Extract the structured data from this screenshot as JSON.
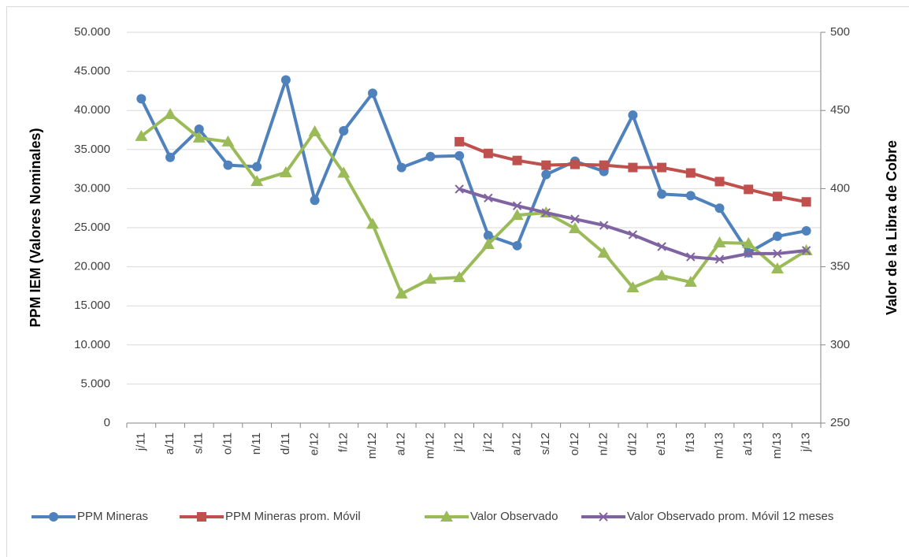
{
  "chart_data": {
    "type": "line",
    "categories": [
      "j/11",
      "a/11",
      "s/11",
      "o/11",
      "n/11",
      "d/11",
      "e/12",
      "f/12",
      "m/12",
      "a/12",
      "m/12",
      "j/12",
      "j/12",
      "a/12",
      "s/12",
      "o/12",
      "n/12",
      "d/12",
      "e/13",
      "f/13",
      "m/13",
      "a/13",
      "m/13",
      "j/13"
    ],
    "ylabel": "PPM IEM (Valores Nominales)",
    "y2label": "Valor de la Libra de Cobre",
    "ylim": [
      0,
      50000
    ],
    "yticks": [
      0,
      {
        "value": 5000,
        "label": "5.000"
      },
      {
        "value": 10000,
        "label": "10.000"
      },
      {
        "value": 15000,
        "label": "15.000"
      },
      {
        "value": 20000,
        "label": "20.000"
      },
      {
        "value": 25000,
        "label": "25.000"
      },
      {
        "value": 30000,
        "label": "30.000"
      },
      {
        "value": 35000,
        "label": "35.000"
      },
      {
        "value": 40000,
        "label": "40.000"
      },
      {
        "value": 45000,
        "label": "45.000"
      },
      {
        "value": 50000,
        "label": "50.000"
      }
    ],
    "y2lim": [
      250,
      500
    ],
    "y2ticks": [
      250,
      300,
      350,
      400,
      450,
      500
    ],
    "grid": true,
    "legend": "bottom",
    "series": [
      {
        "name": "PPM Mineras",
        "color": "#4f81bd",
        "marker": "circle",
        "values": [
          41500,
          34000,
          37600,
          33000,
          32800,
          43900,
          28500,
          37400,
          42200,
          32700,
          34100,
          34200,
          24000,
          22700,
          31800,
          33500,
          32200,
          39400,
          29300,
          29100,
          27500,
          21800,
          23900,
          24600
        ]
      },
      {
        "name": "PPM Mineras prom. Móvil",
        "color": "#c0504d",
        "marker": "square",
        "values": [
          null,
          null,
          null,
          null,
          null,
          null,
          null,
          null,
          null,
          null,
          null,
          36000,
          34500,
          33600,
          33000,
          33100,
          33000,
          32700,
          32700,
          32000,
          30900,
          29900,
          29000,
          28300
        ]
      },
      {
        "name": "Valor Observado",
        "color": "#9bbb59",
        "marker": "triangle",
        "axis": "y2",
        "values": [
          433.5,
          447.6,
          432.5,
          430,
          404.7,
          410.3,
          436.5,
          410,
          377.3,
          332.7,
          342.2,
          343.2,
          364.4,
          383,
          384.6,
          374.5,
          358.9,
          336.7,
          344.3,
          340.2,
          365.4,
          365,
          348.8,
          360.4
        ]
      },
      {
        "name": "Valor Observado  prom. Móvil 12 meses",
        "color": "#8064a2",
        "marker": "x",
        "axis": "y2",
        "values": [
          null,
          null,
          null,
          null,
          null,
          null,
          null,
          null,
          null,
          null,
          null,
          399.7,
          394,
          389,
          384.6,
          380.5,
          376.5,
          370.5,
          362.9,
          356.3,
          354.8,
          358.4,
          358.4,
          360.4
        ]
      }
    ]
  }
}
